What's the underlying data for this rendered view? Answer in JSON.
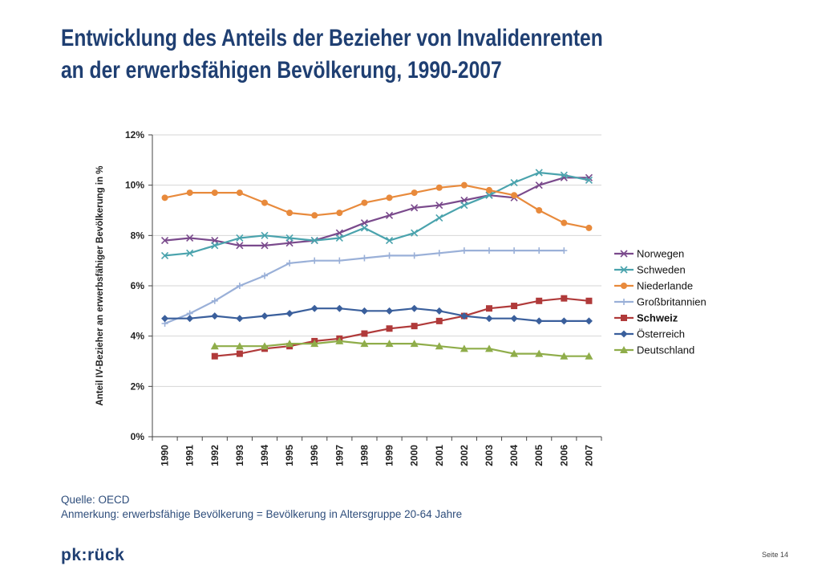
{
  "page": {
    "title_line1": "Entwicklung des Anteils der Bezieher von Invalidenrenten",
    "title_line2": "an der erwerbsfähigen Bevölkerung, 1990-2007",
    "source": "Quelle: OECD",
    "note": "Anmerkung: erwerbsfähige Bevölkerung = Bevölkerung in Altersgruppe 20-64 Jahre",
    "logo": "pk:rück",
    "page_label": "Seite 14"
  },
  "chart_data": {
    "type": "line",
    "ylabel": "Anteil IV-Bezieher an erwerbsfähiger Bevölkerung in %",
    "ylim": [
      0,
      12
    ],
    "yticks": [
      0,
      2,
      4,
      6,
      8,
      10,
      12
    ],
    "ytick_labels": [
      "0%",
      "2%",
      "4%",
      "6%",
      "8%",
      "10%",
      "12%"
    ],
    "categories": [
      "1990",
      "1991",
      "1992",
      "1993",
      "1994",
      "1995",
      "1996",
      "1997",
      "1998",
      "1999",
      "2000",
      "2001",
      "2002",
      "2003",
      "2004",
      "2005",
      "2006",
      "2007"
    ],
    "legend_position": "right",
    "series": [
      {
        "name": "Norwegen",
        "color": "#7a4a8c",
        "marker": "x",
        "bold": false,
        "values": [
          7.8,
          7.9,
          7.8,
          7.6,
          7.6,
          7.7,
          7.8,
          8.1,
          8.5,
          8.8,
          9.1,
          9.2,
          9.4,
          9.6,
          9.5,
          10.0,
          10.3,
          10.3
        ]
      },
      {
        "name": "Schweden",
        "color": "#4aa3ad",
        "marker": "x",
        "bold": false,
        "values": [
          7.2,
          7.3,
          7.6,
          7.9,
          8.0,
          7.9,
          7.8,
          7.9,
          8.3,
          7.8,
          8.1,
          8.7,
          9.2,
          9.6,
          10.1,
          10.5,
          10.4,
          10.2
        ]
      },
      {
        "name": "Niederlande",
        "color": "#e88a3c",
        "marker": "circle",
        "bold": false,
        "values": [
          9.5,
          9.7,
          9.7,
          9.7,
          9.3,
          8.9,
          8.8,
          8.9,
          9.3,
          9.5,
          9.7,
          9.9,
          10.0,
          9.8,
          9.6,
          9.0,
          8.5,
          8.3
        ]
      },
      {
        "name": "Großbritannien",
        "color": "#9ab0d8",
        "marker": "plus",
        "bold": false,
        "values": [
          4.5,
          4.9,
          5.4,
          6.0,
          6.4,
          6.9,
          7.0,
          7.0,
          7.1,
          7.2,
          7.2,
          7.3,
          7.4,
          7.4,
          7.4,
          7.4,
          7.4,
          null
        ]
      },
      {
        "name": "Schweiz",
        "color": "#b03a3a",
        "marker": "square",
        "bold": true,
        "values": [
          null,
          null,
          3.2,
          3.3,
          3.5,
          3.6,
          3.8,
          3.9,
          4.1,
          4.3,
          4.4,
          4.6,
          4.8,
          5.1,
          5.2,
          5.4,
          5.5,
          5.4
        ]
      },
      {
        "name": "Österreich",
        "color": "#3a5f9c",
        "marker": "diamond",
        "bold": false,
        "values": [
          4.7,
          4.7,
          4.8,
          4.7,
          4.8,
          4.9,
          5.1,
          5.1,
          5.0,
          5.0,
          5.1,
          5.0,
          4.8,
          4.7,
          4.7,
          4.6,
          4.6,
          4.6
        ]
      },
      {
        "name": "Deutschland",
        "color": "#8fad4a",
        "marker": "triangle",
        "bold": false,
        "values": [
          null,
          null,
          3.6,
          3.6,
          3.6,
          3.7,
          3.7,
          3.8,
          3.7,
          3.7,
          3.7,
          3.6,
          3.5,
          3.5,
          3.3,
          3.3,
          3.2,
          3.2
        ]
      }
    ]
  }
}
